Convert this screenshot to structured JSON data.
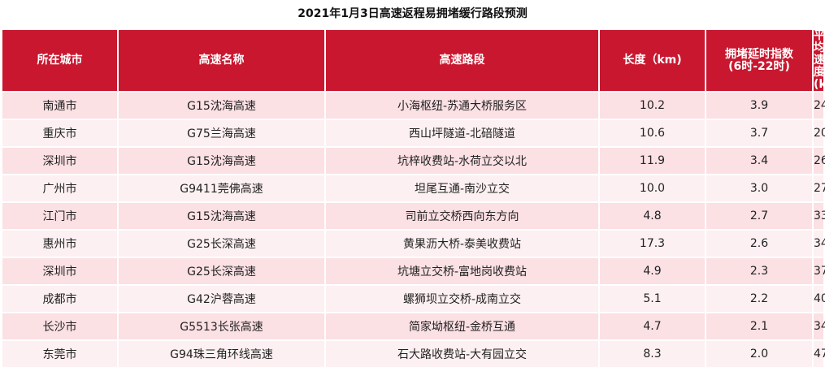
{
  "title": "2021年1月3日高速返程易拥堵缓行路段预测",
  "headers": {
    "city": "所在城市",
    "highway": "高速名称",
    "segment": "高速路段",
    "length": "长度（km)",
    "congestion_line1": "拥堵延时指数",
    "congestion_line2": "(6时-22时)",
    "speed_line1": "平均速度",
    "speed_line2": "(km/h)"
  },
  "colors": {
    "header_bg": "#c9172f",
    "row_odd": "#fbe0e4",
    "row_even": "#fdf0f2"
  },
  "rows": [
    {
      "city": "南通市",
      "highway": "G15沈海高速",
      "segment": "小海枢纽-苏通大桥服务区",
      "length": "10.2",
      "index": "3.9",
      "speed": "24"
    },
    {
      "city": "重庆市",
      "highway": "G75兰海高速",
      "segment": "西山坪隧道-北碚隧道",
      "length": "10.6",
      "index": "3.7",
      "speed": "20"
    },
    {
      "city": "深圳市",
      "highway": "G15沈海高速",
      "segment": "坑梓收费站-水荷立交以北",
      "length": "11.9",
      "index": "3.4",
      "speed": "26"
    },
    {
      "city": "广州市",
      "highway": "G9411莞佛高速",
      "segment": "坦尾互通-南沙立交",
      "length": "10.0",
      "index": "3.0",
      "speed": "27"
    },
    {
      "city": "江门市",
      "highway": "G15沈海高速",
      "segment": "司前立交桥西向东方向",
      "length": "4.8",
      "index": "2.7",
      "speed": "33"
    },
    {
      "city": "惠州市",
      "highway": "G25长深高速",
      "segment": "黄果沥大桥-泰美收费站",
      "length": "17.3",
      "index": "2.6",
      "speed": "34"
    },
    {
      "city": "深圳市",
      "highway": "G25长深高速",
      "segment": "坑塘立交桥-富地岗收费站",
      "length": "4.9",
      "index": "2.3",
      "speed": "37"
    },
    {
      "city": "成都市",
      "highway": "G42沪蓉高速",
      "segment": "螺狮坝立交桥-成南立交",
      "length": "5.1",
      "index": "2.2",
      "speed": "40"
    },
    {
      "city": "长沙市",
      "highway": "G5513长张高速",
      "segment": "简家坳枢纽-金桥互通",
      "length": "4.7",
      "index": "2.1",
      "speed": "34"
    },
    {
      "city": "东莞市",
      "highway": "G94珠三角环线高速",
      "segment": "石大路收费站-大有园立交",
      "length": "8.3",
      "index": "2.0",
      "speed": "47"
    }
  ]
}
